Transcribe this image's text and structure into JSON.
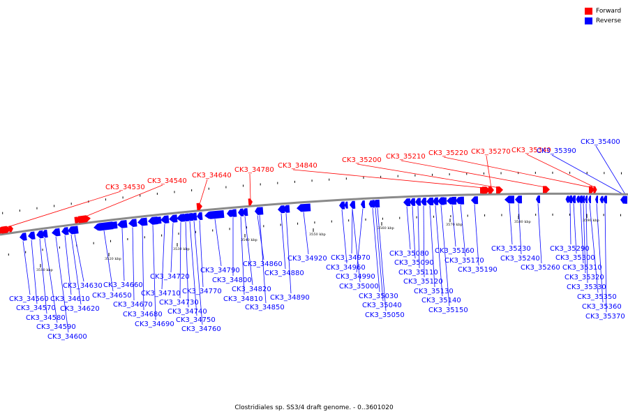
{
  "colors": {
    "forward": "#ff0000",
    "reverse": "#0000ff",
    "backbone": "#8a8a8a"
  },
  "legend": [
    {
      "label": "Forward",
      "color": "#ff0000"
    },
    {
      "label": "Reverse",
      "color": "#0000ff"
    }
  ],
  "caption": "Clostridiales sp. SS3/4 draft genome. - 0..3601020",
  "ticks": [
    {
      "label": "3510 kbp",
      "pos": 3510
    },
    {
      "label": "3520 kbp",
      "pos": 3520
    },
    {
      "label": "3530 kbp",
      "pos": 3530
    },
    {
      "label": "3540 kbp",
      "pos": 3540
    },
    {
      "label": "3550 kbp",
      "pos": 3550
    },
    {
      "label": "3560 kbp",
      "pos": 3560
    },
    {
      "label": "3570 kbp",
      "pos": 3570
    },
    {
      "label": "3580 kbp",
      "pos": 3580
    },
    {
      "label": "3590 kbp",
      "pos": 3590
    }
  ],
  "forward_genes": [
    "CK3_34530",
    "CK3_34540",
    "CK3_34640",
    "CK3_34780",
    "CK3_34840",
    "CK3_35200",
    "CK3_35210",
    "CK3_35220",
    "CK3_35270",
    "CK3_35340"
  ],
  "reverse_genes": [
    "CK3_34560",
    "CK3_34570",
    "CK3_34580",
    "CK3_34590",
    "CK3_34600",
    "CK3_34610",
    "CK3_34620",
    "CK3_34630",
    "CK3_34650",
    "CK3_34660",
    "CK3_34670",
    "CK3_34680",
    "CK3_34690",
    "CK3_34710",
    "CK3_34720",
    "CK3_34730",
    "CK3_34740",
    "CK3_34750",
    "CK3_34760",
    "CK3_34770",
    "CK3_34790",
    "CK3_34800",
    "CK3_34810",
    "CK3_34820",
    "CK3_34850",
    "CK3_34860",
    "CK3_34880",
    "CK3_34890",
    "CK3_34920",
    "CK3_34960",
    "CK3_34970",
    "CK3_34990",
    "CK3_35000",
    "CK3_35030",
    "CK3_35040",
    "CK3_35050",
    "CK3_35080",
    "CK3_35090",
    "CK3_35110",
    "CK3_35120",
    "CK3_35130",
    "CK3_35140",
    "CK3_35150",
    "CK3_35160",
    "CK3_35170",
    "CK3_35190",
    "CK3_35230",
    "CK3_35240",
    "CK3_35260",
    "CK3_35290",
    "CK3_35300",
    "CK3_35310",
    "CK3_35320",
    "CK3_35330",
    "CK3_35350",
    "CK3_35360",
    "CK3_35370",
    "CK3_35390",
    "CK3_35400"
  ]
}
